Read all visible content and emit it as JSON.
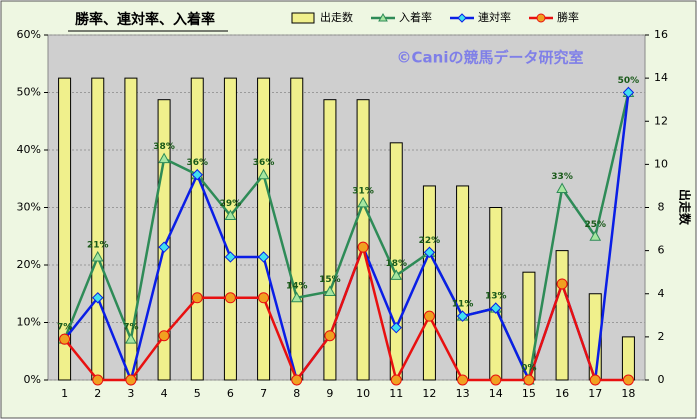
{
  "chart_data": {
    "type": "bar",
    "title": "勝率、連対率、入着率",
    "watermark": "©Caniの競馬データ研究室",
    "y2_label": "出走数",
    "categories": [
      "1",
      "2",
      "3",
      "4",
      "5",
      "6",
      "7",
      "8",
      "9",
      "10",
      "11",
      "12",
      "13",
      "14",
      "15",
      "16",
      "17",
      "18"
    ],
    "series": [
      {
        "name": "出走数",
        "type": "bar",
        "axis": "y2",
        "color": "#f0f08c",
        "values": [
          14,
          14,
          14,
          13,
          14,
          14,
          14,
          14,
          13,
          13,
          11,
          9,
          9,
          8,
          5,
          6,
          4,
          2
        ]
      },
      {
        "name": "入着率",
        "type": "line",
        "marker": "triangle",
        "color": "#2e8b57",
        "values": [
          7.1,
          21.4,
          7.1,
          38.5,
          35.7,
          28.6,
          35.7,
          14.3,
          15.4,
          30.8,
          18.2,
          22.2,
          11.1,
          12.5,
          0,
          33.3,
          25,
          50
        ],
        "value_labels": [
          "7%",
          "21%",
          "7%",
          "38%",
          "36%",
          "29%",
          "36%",
          "14%",
          "15%",
          "31%",
          "18%",
          "22%",
          "11%",
          "13%",
          "0%",
          "33%",
          "25%",
          "50%"
        ]
      },
      {
        "name": "連対率",
        "type": "line",
        "marker": "diamond",
        "color": "#0a1ee6",
        "values": [
          7.1,
          14.3,
          0,
          23.1,
          35.7,
          21.4,
          21.4,
          0,
          7.7,
          23.1,
          9.1,
          22.2,
          11.1,
          12.5,
          0,
          16.7,
          0,
          50
        ]
      },
      {
        "name": "勝率",
        "type": "line",
        "marker": "circle",
        "color": "#e81010",
        "values": [
          7.1,
          0,
          0,
          7.7,
          14.3,
          14.3,
          14.3,
          0,
          7.7,
          23.1,
          0,
          11.1,
          0,
          0,
          0,
          16.7,
          0,
          0
        ]
      }
    ],
    "ylim": [
      0,
      60
    ],
    "yticks": [
      {
        "value": 0,
        "label": "0%"
      },
      {
        "value": 10,
        "label": "10%"
      },
      {
        "value": 20,
        "label": "20%"
      },
      {
        "value": 30,
        "label": "30%"
      },
      {
        "value": 40,
        "label": "40%"
      },
      {
        "value": 50,
        "label": "50%"
      },
      {
        "value": 60,
        "label": "60%"
      }
    ],
    "y2lim": [
      0,
      16
    ],
    "y2ticks": [
      0,
      2,
      4,
      6,
      8,
      10,
      12,
      14,
      16
    ],
    "grid": true,
    "legend": "top"
  }
}
